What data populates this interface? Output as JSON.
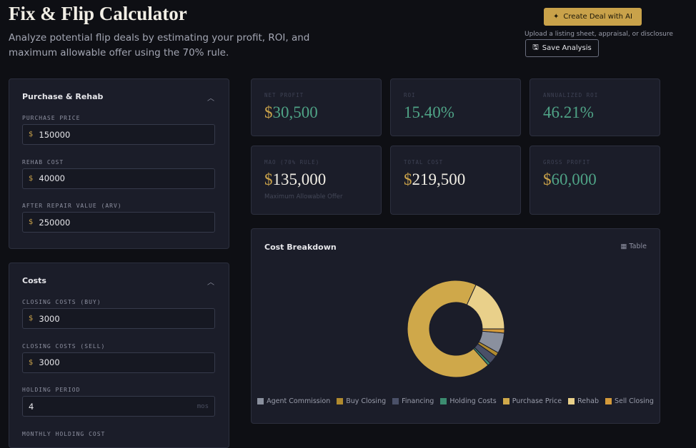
{
  "header": {
    "title": "Fix & Flip Calculator",
    "subtitle": "Analyze potential flip deals by estimating your profit, ROI, and maximum allowable offer using the 70% rule.",
    "create_button": "Create Deal with AI",
    "upload_hint": "Upload a listing sheet, appraisal, or disclosure",
    "save_button": "Save Analysis"
  },
  "panels": [
    {
      "title": "Purchase & Rehab",
      "fields": [
        {
          "label": "PURCHASE PRICE",
          "prefix": "$",
          "value": "150000"
        },
        {
          "label": "REHAB COST",
          "prefix": "$",
          "value": "40000"
        },
        {
          "label": "AFTER REPAIR VALUE (ARV)",
          "prefix": "$",
          "value": "250000"
        }
      ]
    },
    {
      "title": "Costs",
      "fields": [
        {
          "label": "CLOSING COSTS (BUY)",
          "prefix": "$",
          "value": "3000"
        },
        {
          "label": "CLOSING COSTS (SELL)",
          "prefix": "$",
          "value": "3000"
        },
        {
          "label": "HOLDING PERIOD",
          "value": "4",
          "suffix": "mos"
        },
        {
          "label": "MONTHLY HOLDING COST"
        }
      ]
    }
  ],
  "metrics": [
    {
      "label": "NET PROFIT",
      "currency": "$",
      "amount": "30,500",
      "tone": "green"
    },
    {
      "label": "ROI",
      "amount": "15.40%",
      "tone": "green"
    },
    {
      "label": "ANNUALIZED ROI",
      "amount": "46.21%",
      "tone": "green"
    },
    {
      "label": "MAO (70% RULE)",
      "currency": "$",
      "amount": "135,000",
      "tone": "white",
      "note": "Maximum Allowable Offer"
    },
    {
      "label": "TOTAL COST",
      "currency": "$",
      "amount": "219,500",
      "tone": "white"
    },
    {
      "label": "GROSS PROFIT",
      "currency": "$",
      "amount": "60,000",
      "tone": "green"
    }
  ],
  "chart_data": {
    "type": "pie",
    "title": "Cost Breakdown",
    "table_toggle": "Table",
    "categories": [
      "Agent Commission",
      "Buy Closing",
      "Financing",
      "Holding Costs",
      "Purchase Price",
      "Rehab",
      "Sell Closing"
    ],
    "values": [
      15000,
      3000,
      6500,
      2000,
      150000,
      40000,
      3000
    ],
    "colors": [
      "#8a909e",
      "#b08a2e",
      "#4a5068",
      "#3c8c70",
      "#cfa84a",
      "#e9d08a",
      "#d49a3a"
    ]
  }
}
